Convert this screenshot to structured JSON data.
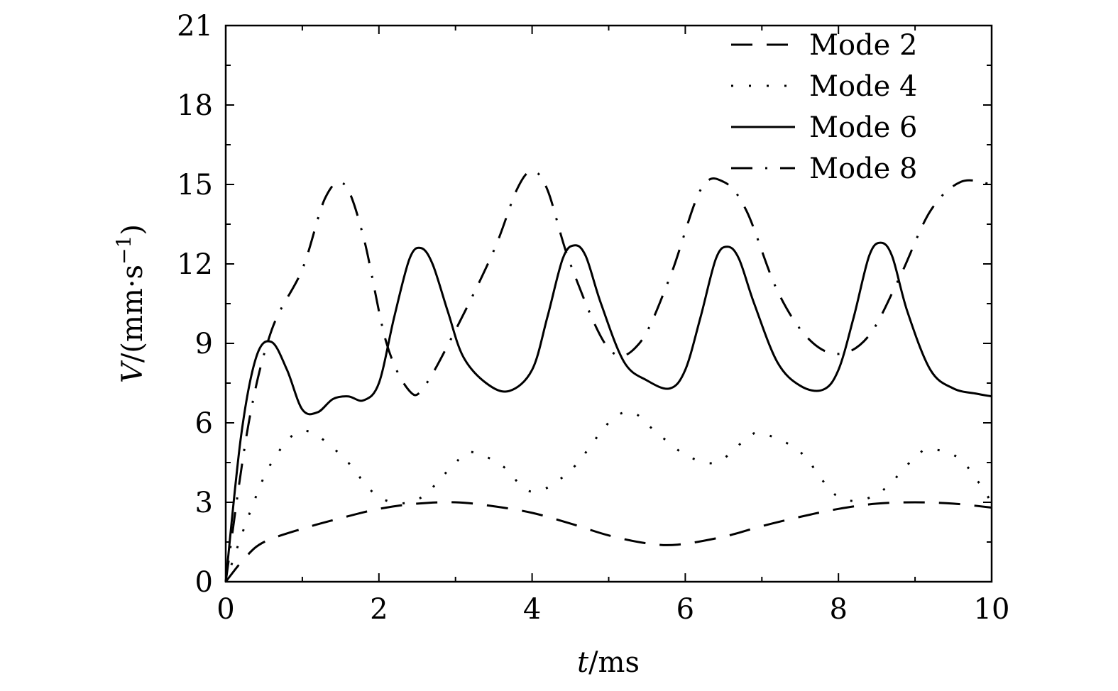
{
  "chart_data": {
    "type": "line",
    "title": "",
    "xlabel": {
      "var": "t",
      "unit": "/ms"
    },
    "ylabel": {
      "var": "V",
      "unit": "/(mm·s",
      "exp": "−1",
      "close": ")"
    },
    "xlim": [
      0,
      10
    ],
    "ylim": [
      0,
      21
    ],
    "x_ticks": [
      0,
      2,
      4,
      6,
      8,
      10
    ],
    "x_tick_labels": [
      "0",
      "2",
      "4",
      "6",
      "8",
      "10"
    ],
    "y_ticks": [
      0,
      3,
      6,
      9,
      12,
      15,
      18,
      21
    ],
    "y_tick_labels": [
      "0",
      "3",
      "6",
      "9",
      "12",
      "15",
      "18",
      "21"
    ],
    "grid": false,
    "legend_position": "top-right",
    "series": [
      {
        "name": "Mode 2",
        "dash": "dashed",
        "x": [
          0,
          0.25,
          0.5,
          1.0,
          1.5,
          2.0,
          2.5,
          3.0,
          3.5,
          4.0,
          4.5,
          5.0,
          5.5,
          5.9,
          6.5,
          7.0,
          7.5,
          8.0,
          8.5,
          9.0,
          9.5,
          10.0
        ],
        "y": [
          0,
          0.9,
          1.5,
          2.0,
          2.4,
          2.75,
          2.95,
          3.0,
          2.85,
          2.6,
          2.2,
          1.75,
          1.45,
          1.4,
          1.7,
          2.1,
          2.45,
          2.75,
          2.95,
          3.0,
          2.95,
          2.8
        ]
      },
      {
        "name": "Mode 4",
        "dash": "dotted",
        "x": [
          0,
          0.3,
          0.6,
          1.0,
          1.5,
          2.0,
          2.5,
          3.0,
          3.2,
          3.6,
          4.0,
          4.5,
          5.0,
          5.3,
          5.6,
          6.0,
          6.4,
          6.8,
          7.0,
          7.5,
          8.0,
          8.5,
          9.0,
          9.2,
          9.6,
          10.0
        ],
        "y": [
          0,
          2.5,
          4.5,
          5.7,
          4.8,
          3.2,
          3.1,
          4.5,
          4.9,
          4.4,
          3.4,
          4.2,
          6.0,
          6.4,
          5.7,
          4.8,
          4.5,
          5.4,
          5.6,
          4.9,
          3.2,
          3.3,
          4.7,
          5.0,
          4.6,
          3.0
        ]
      },
      {
        "name": "Mode 6",
        "dash": "solid",
        "x": [
          0,
          0.2,
          0.4,
          0.6,
          0.8,
          1.0,
          1.2,
          1.4,
          1.6,
          1.8,
          2.0,
          2.2,
          2.4,
          2.55,
          2.7,
          2.9,
          3.1,
          3.4,
          3.7,
          4.0,
          4.2,
          4.4,
          4.55,
          4.7,
          4.9,
          5.2,
          5.5,
          5.8,
          6.0,
          6.2,
          6.4,
          6.55,
          6.7,
          6.9,
          7.2,
          7.5,
          7.8,
          8.0,
          8.2,
          8.4,
          8.55,
          8.7,
          8.9,
          9.2,
          9.5,
          9.8,
          10.0
        ],
        "y": [
          0,
          5.5,
          8.5,
          9.05,
          8.0,
          6.5,
          6.4,
          6.9,
          7.0,
          6.85,
          7.5,
          10.0,
          12.2,
          12.6,
          12.0,
          10.2,
          8.5,
          7.5,
          7.2,
          8.0,
          10.0,
          12.2,
          12.7,
          12.3,
          10.5,
          8.3,
          7.6,
          7.3,
          8.0,
          10.0,
          12.2,
          12.65,
          12.2,
          10.5,
          8.3,
          7.4,
          7.25,
          8.0,
          10.0,
          12.3,
          12.8,
          12.3,
          10.2,
          8.0,
          7.3,
          7.1,
          7.0
        ]
      },
      {
        "name": "Mode 8",
        "dash": "dashdot",
        "x": [
          0,
          0.3,
          0.6,
          1.0,
          1.3,
          1.55,
          1.8,
          2.1,
          2.4,
          2.6,
          3.0,
          3.5,
          3.8,
          4.0,
          4.2,
          4.5,
          5.0,
          5.4,
          5.8,
          6.2,
          6.5,
          6.8,
          7.2,
          7.6,
          8.0,
          8.4,
          8.8,
          9.2,
          9.6,
          10.0
        ],
        "y": [
          0,
          6.0,
          9.5,
          11.8,
          14.5,
          15.0,
          13.0,
          9.0,
          7.2,
          7.4,
          9.5,
          12.5,
          14.8,
          15.5,
          14.8,
          12.0,
          8.8,
          9.0,
          11.5,
          14.8,
          15.1,
          14.0,
          11.0,
          9.2,
          8.6,
          9.3,
          11.5,
          14.0,
          15.1,
          15.0
        ]
      }
    ]
  }
}
